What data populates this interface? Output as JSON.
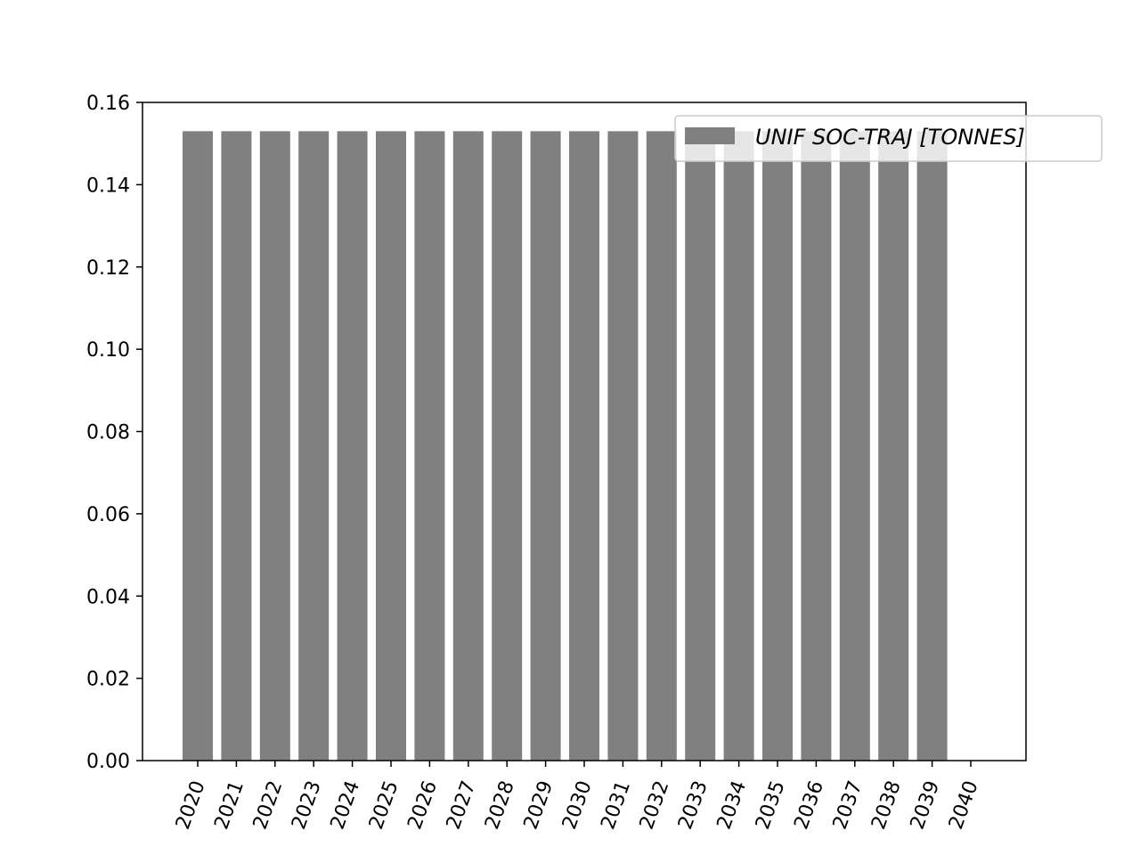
{
  "chart_data": {
    "type": "bar",
    "title": "",
    "xlabel": "",
    "ylabel": "",
    "categories": [
      "2020",
      "2021",
      "2022",
      "2023",
      "2024",
      "2025",
      "2026",
      "2027",
      "2028",
      "2029",
      "2030",
      "2031",
      "2032",
      "2033",
      "2034",
      "2035",
      "2036",
      "2037",
      "2038",
      "2039",
      "2040"
    ],
    "series": [
      {
        "name": "UNIF SOC-TRAJ [TONNES]",
        "values": [
          0.153,
          0.153,
          0.153,
          0.153,
          0.153,
          0.153,
          0.153,
          0.153,
          0.153,
          0.153,
          0.153,
          0.153,
          0.153,
          0.153,
          0.153,
          0.153,
          0.153,
          0.153,
          0.153,
          0.153,
          0
        ]
      }
    ],
    "ylim": [
      0,
      0.16
    ],
    "yticks": [
      "0.00",
      "0.02",
      "0.04",
      "0.06",
      "0.08",
      "0.10",
      "0.12",
      "0.14",
      "0.16"
    ],
    "grid": false,
    "legend_position": "top-right",
    "bar_color": "#808080",
    "x_tick_rotation": "70 degrees"
  }
}
